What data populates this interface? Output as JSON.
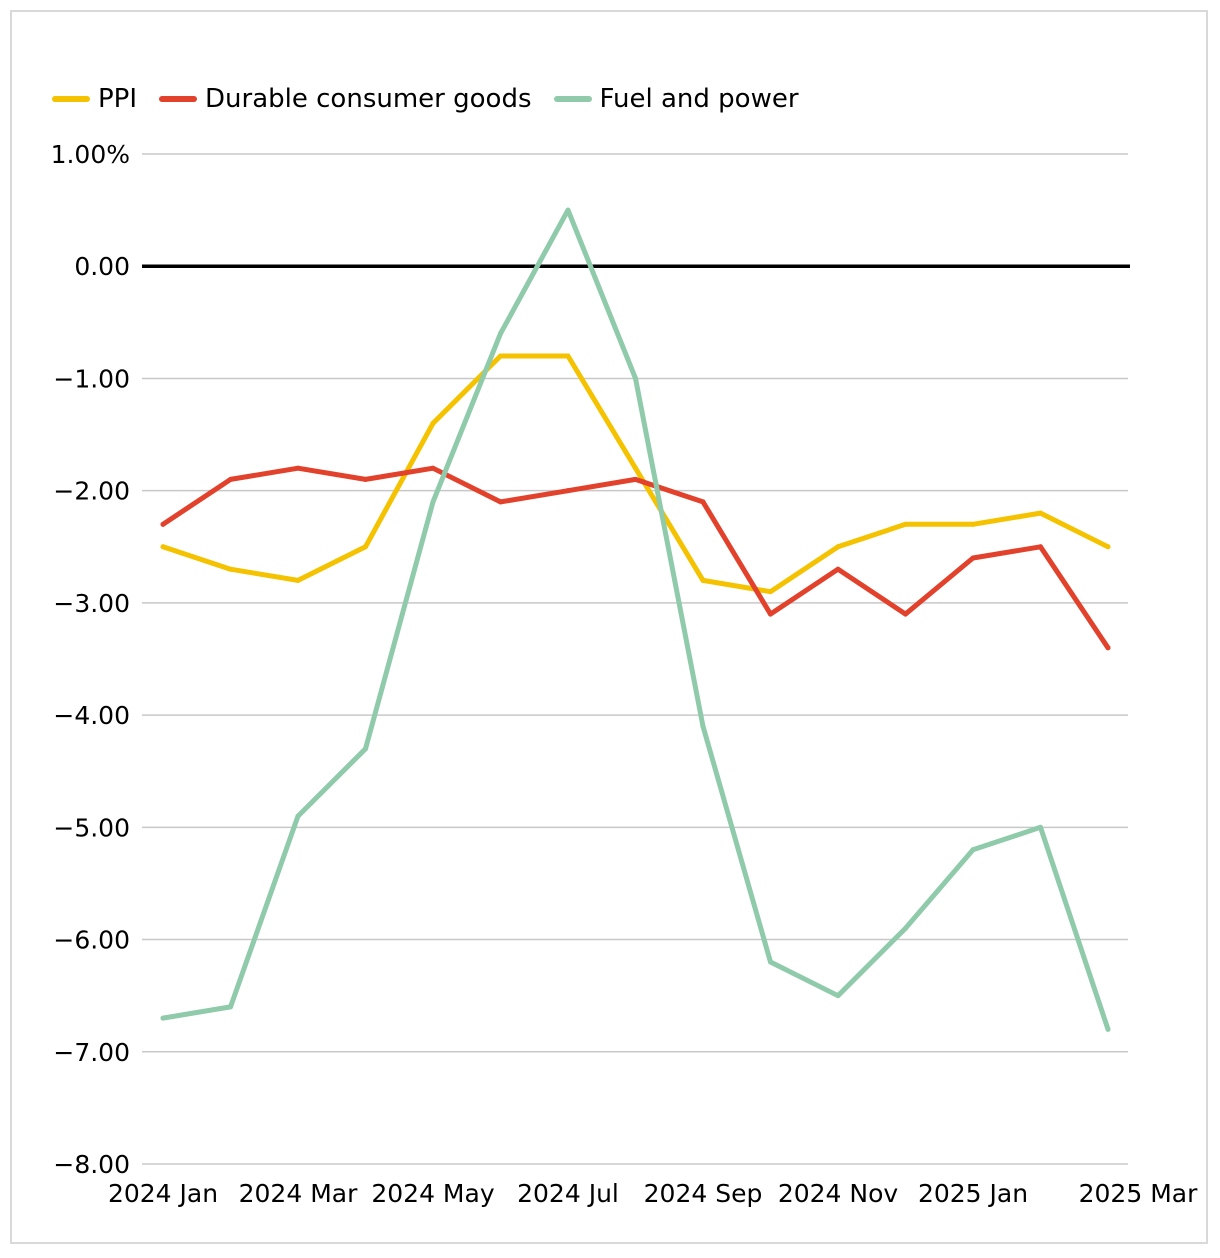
{
  "chart_data": {
    "type": "line",
    "title": "",
    "xlabel": "",
    "ylabel": "",
    "ylim": [
      -8,
      1
    ],
    "y_ticks": [
      1,
      0,
      -1,
      -2,
      -3,
      -4,
      -5,
      -6,
      -7,
      -8
    ],
    "y_tick_labels": [
      "1.00%",
      "0.00",
      "−1.00",
      "−2.00",
      "−3.00",
      "−4.00",
      "−5.00",
      "−6.00",
      "−7.00",
      "−8.00"
    ],
    "categories": [
      "2024 Jan",
      "2024 Feb",
      "2024 Mar",
      "2024 Apr",
      "2024 May",
      "2024 Jun",
      "2024 Jul",
      "2024 Aug",
      "2024 Sep",
      "2024 Oct",
      "2024 Nov",
      "2024 Dec",
      "2025 Jan",
      "2025 Feb",
      "2025 Mar"
    ],
    "x_tick_labels": [
      "2024 Jan",
      "2024 Mar",
      "2024 May",
      "2024 Jul",
      "2024 Sep",
      "2024 Nov",
      "2025 Jan",
      "2025 Mar"
    ],
    "legend_position": "top-left",
    "grid": true,
    "series": [
      {
        "name": "PPI",
        "color": "#f5c200",
        "values": [
          -2.5,
          -2.7,
          -2.8,
          -2.5,
          -1.4,
          -0.8,
          -0.8,
          -1.8,
          -2.8,
          -2.9,
          -2.5,
          -2.3,
          -2.3,
          -2.2,
          -2.5
        ]
      },
      {
        "name": "Durable consumer goods",
        "color": "#e2412b",
        "values": [
          -2.3,
          -1.9,
          -1.8,
          -1.9,
          -1.8,
          -2.1,
          -2.0,
          -1.9,
          -2.1,
          -3.1,
          -2.7,
          -3.1,
          -2.6,
          -2.5,
          -3.4
        ]
      },
      {
        "name": "Fuel and power",
        "color": "#8fcaaa",
        "values": [
          -6.7,
          -6.6,
          -4.9,
          -4.3,
          -2.1,
          -0.6,
          0.5,
          -1.0,
          -4.1,
          -6.2,
          -6.5,
          -5.9,
          -5.2,
          -5.0,
          -6.8
        ]
      }
    ]
  }
}
